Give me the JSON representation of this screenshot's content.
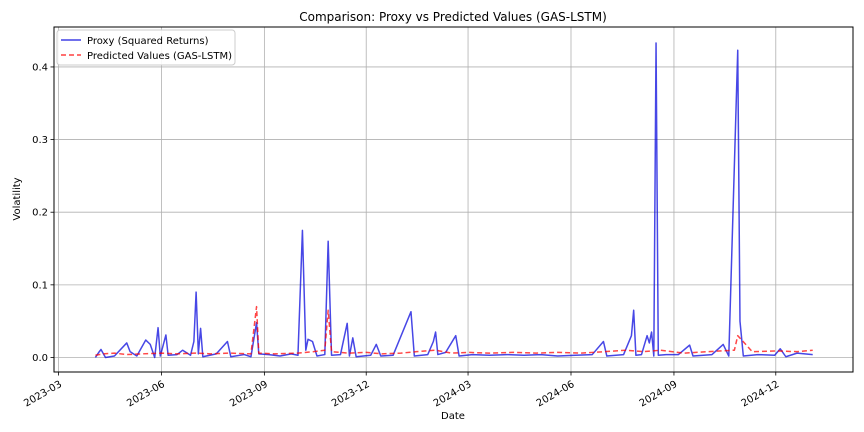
{
  "chart_data": {
    "type": "line",
    "title": "Comparison: Proxy vs Predicted Values (GAS-LSTM)",
    "xlabel": "Date",
    "ylabel": "Volatility",
    "xlim": [
      "2023-02-25",
      "2025-02-08"
    ],
    "ylim": [
      -0.02,
      0.455
    ],
    "x_ticks": [
      "2023-03",
      "2023-06",
      "2023-09",
      "2023-12",
      "2024-03",
      "2024-06",
      "2024-09",
      "2024-12"
    ],
    "x_tick_dates": [
      "2023-03-01",
      "2023-06-01",
      "2023-09-01",
      "2023-12-01",
      "2024-03-01",
      "2024-06-01",
      "2024-09-01",
      "2024-12-01"
    ],
    "y_ticks": [
      0.0,
      0.1,
      0.2,
      0.3,
      0.4
    ],
    "y_tick_labels": [
      "0.0",
      "0.1",
      "0.2",
      "0.3",
      "0.4"
    ],
    "grid": true,
    "legend_position": "top-left",
    "date_range": [
      "2023-04-03",
      "2025-01-03"
    ],
    "series": [
      {
        "name": "Proxy (Squared Returns)",
        "color": "#0000dd",
        "style": "solid",
        "points": [
          [
            "2023-04-03",
            0.0
          ],
          [
            "2023-04-06",
            0.007
          ],
          [
            "2023-04-08",
            0.011
          ],
          [
            "2023-04-12",
            0.0
          ],
          [
            "2023-04-20",
            0.002
          ],
          [
            "2023-05-01",
            0.02
          ],
          [
            "2023-05-04",
            0.008
          ],
          [
            "2023-05-10",
            0.002
          ],
          [
            "2023-05-18",
            0.024
          ],
          [
            "2023-05-22",
            0.018
          ],
          [
            "2023-05-26",
            0.0
          ],
          [
            "2023-05-29",
            0.041
          ],
          [
            "2023-05-31",
            0.002
          ],
          [
            "2023-06-05",
            0.031
          ],
          [
            "2023-06-07",
            0.003
          ],
          [
            "2023-06-15",
            0.004
          ],
          [
            "2023-06-20",
            0.01
          ],
          [
            "2023-06-27",
            0.003
          ],
          [
            "2023-06-30",
            0.022
          ],
          [
            "2023-07-02",
            0.09
          ],
          [
            "2023-07-04",
            0.005
          ],
          [
            "2023-07-06",
            0.04
          ],
          [
            "2023-07-08",
            0.001
          ],
          [
            "2023-07-20",
            0.005
          ],
          [
            "2023-07-30",
            0.022
          ],
          [
            "2023-08-02",
            0.001
          ],
          [
            "2023-08-14",
            0.004
          ],
          [
            "2023-08-20",
            0.001
          ],
          [
            "2023-08-25",
            0.048
          ],
          [
            "2023-08-27",
            0.005
          ],
          [
            "2023-09-05",
            0.004
          ],
          [
            "2023-09-15",
            0.002
          ],
          [
            "2023-09-25",
            0.005
          ],
          [
            "2023-10-01",
            0.003
          ],
          [
            "2023-10-05",
            0.175
          ],
          [
            "2023-10-08",
            0.01
          ],
          [
            "2023-10-10",
            0.025
          ],
          [
            "2023-10-14",
            0.022
          ],
          [
            "2023-10-18",
            0.002
          ],
          [
            "2023-10-25",
            0.004
          ],
          [
            "2023-10-28",
            0.16
          ],
          [
            "2023-10-31",
            0.003
          ],
          [
            "2023-11-08",
            0.004
          ],
          [
            "2023-11-14",
            0.047
          ],
          [
            "2023-11-16",
            0.002
          ],
          [
            "2023-11-19",
            0.027
          ],
          [
            "2023-11-22",
            0.001
          ],
          [
            "2023-12-05",
            0.003
          ],
          [
            "2023-12-10",
            0.018
          ],
          [
            "2023-12-14",
            0.002
          ],
          [
            "2023-12-25",
            0.003
          ],
          [
            "2024-01-10",
            0.063
          ],
          [
            "2024-01-13",
            0.002
          ],
          [
            "2024-01-25",
            0.004
          ],
          [
            "2024-01-30",
            0.022
          ],
          [
            "2024-02-01",
            0.035
          ],
          [
            "2024-02-03",
            0.004
          ],
          [
            "2024-02-10",
            0.007
          ],
          [
            "2024-02-19",
            0.03
          ],
          [
            "2024-02-22",
            0.002
          ],
          [
            "2024-03-05",
            0.004
          ],
          [
            "2024-03-20",
            0.003
          ],
          [
            "2024-04-05",
            0.004
          ],
          [
            "2024-04-20",
            0.003
          ],
          [
            "2024-05-05",
            0.004
          ],
          [
            "2024-05-20",
            0.002
          ],
          [
            "2024-06-05",
            0.003
          ],
          [
            "2024-06-20",
            0.004
          ],
          [
            "2024-06-30",
            0.022
          ],
          [
            "2024-07-03",
            0.002
          ],
          [
            "2024-07-18",
            0.004
          ],
          [
            "2024-07-25",
            0.03
          ],
          [
            "2024-07-27",
            0.065
          ],
          [
            "2024-07-29",
            0.003
          ],
          [
            "2024-08-03",
            0.004
          ],
          [
            "2024-08-08",
            0.03
          ],
          [
            "2024-08-10",
            0.02
          ],
          [
            "2024-08-12",
            0.035
          ],
          [
            "2024-08-14",
            0.002
          ],
          [
            "2024-08-16",
            0.433
          ],
          [
            "2024-08-18",
            0.003
          ],
          [
            "2024-08-25",
            0.004
          ],
          [
            "2024-09-05",
            0.004
          ],
          [
            "2024-09-15",
            0.017
          ],
          [
            "2024-09-18",
            0.002
          ],
          [
            "2024-10-05",
            0.004
          ],
          [
            "2024-10-15",
            0.018
          ],
          [
            "2024-10-20",
            0.002
          ],
          [
            "2024-10-28",
            0.423
          ],
          [
            "2024-10-30",
            0.05
          ],
          [
            "2024-11-02",
            0.002
          ],
          [
            "2024-11-15",
            0.004
          ],
          [
            "2024-11-30",
            0.003
          ],
          [
            "2024-12-05",
            0.012
          ],
          [
            "2024-12-10",
            0.001
          ],
          [
            "2024-12-20",
            0.006
          ],
          [
            "2025-01-03",
            0.004
          ]
        ]
      },
      {
        "name": "Predicted Values (GAS-LSTM)",
        "color": "#ff0000",
        "style": "dashed",
        "points": [
          [
            "2023-04-03",
            0.003
          ],
          [
            "2023-04-10",
            0.005
          ],
          [
            "2023-04-20",
            0.006
          ],
          [
            "2023-05-01",
            0.004
          ],
          [
            "2023-05-15",
            0.005
          ],
          [
            "2023-06-01",
            0.006
          ],
          [
            "2023-06-15",
            0.005
          ],
          [
            "2023-07-01",
            0.006
          ],
          [
            "2023-07-15",
            0.005
          ],
          [
            "2023-08-01",
            0.006
          ],
          [
            "2023-08-20",
            0.005
          ],
          [
            "2023-08-25",
            0.07
          ],
          [
            "2023-08-27",
            0.006
          ],
          [
            "2023-09-10",
            0.005
          ],
          [
            "2023-10-01",
            0.006
          ],
          [
            "2023-10-15",
            0.008
          ],
          [
            "2023-10-25",
            0.01
          ],
          [
            "2023-10-28",
            0.065
          ],
          [
            "2023-10-31",
            0.008
          ],
          [
            "2023-11-15",
            0.006
          ],
          [
            "2023-12-01",
            0.007
          ],
          [
            "2023-12-15",
            0.005
          ],
          [
            "2024-01-01",
            0.006
          ],
          [
            "2024-01-15",
            0.008
          ],
          [
            "2024-02-01",
            0.01
          ],
          [
            "2024-02-15",
            0.006
          ],
          [
            "2024-03-01",
            0.007
          ],
          [
            "2024-03-20",
            0.006
          ],
          [
            "2024-04-10",
            0.007
          ],
          [
            "2024-05-01",
            0.006
          ],
          [
            "2024-05-20",
            0.007
          ],
          [
            "2024-06-10",
            0.006
          ],
          [
            "2024-07-01",
            0.008
          ],
          [
            "2024-07-20",
            0.01
          ],
          [
            "2024-08-05",
            0.008
          ],
          [
            "2024-08-20",
            0.01
          ],
          [
            "2024-09-10",
            0.006
          ],
          [
            "2024-10-01",
            0.008
          ],
          [
            "2024-10-25",
            0.01
          ],
          [
            "2024-10-28",
            0.03
          ],
          [
            "2024-10-31",
            0.025
          ],
          [
            "2024-11-10",
            0.008
          ],
          [
            "2024-12-01",
            0.009
          ],
          [
            "2024-12-20",
            0.008
          ],
          [
            "2025-01-03",
            0.01
          ]
        ]
      }
    ]
  }
}
